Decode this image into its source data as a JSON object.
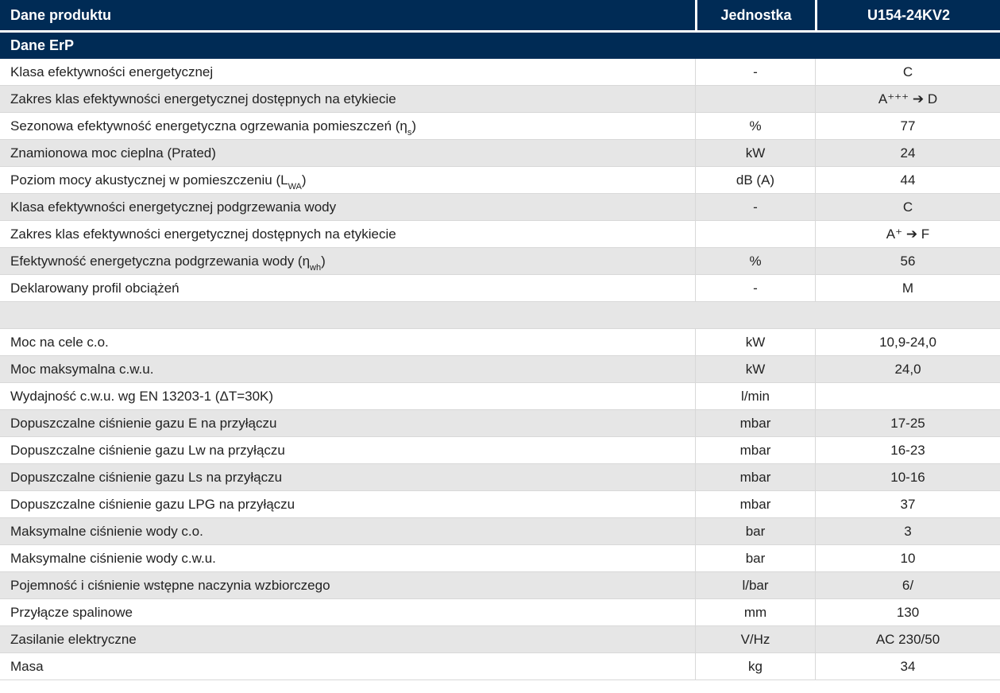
{
  "table": {
    "header": {
      "product_label": "Dane produktu",
      "unit_label": "Jednostka",
      "model_label": "U154-24KV2"
    },
    "section": {
      "erp_label": "Dane ErP"
    },
    "colors": {
      "header_bg": "#002b55",
      "header_text": "#ffffff",
      "row_alt_bg": "#e6e6e6",
      "row_bg": "#ffffff",
      "separator": "#d8d8d8",
      "text": "#222222"
    },
    "rows": [
      {
        "label": "Klasa efektywności energetycznej",
        "sub": "",
        "end": "",
        "unit": "-",
        "value": "C"
      },
      {
        "label": "Zakres klas efektywności energetycznej dostępnych na etykiecie",
        "sub": "",
        "end": "",
        "unit": "",
        "value": "A⁺⁺⁺ ➔ D"
      },
      {
        "label": "Sezonowa efektywność energetyczna ogrzewania pomieszczeń (η",
        "sub": "s",
        "end": ")",
        "unit": "%",
        "value": "77"
      },
      {
        "label": "Znamionowa moc cieplna (Prated)",
        "sub": "",
        "end": "",
        "unit": "kW",
        "value": "24"
      },
      {
        "label": "Poziom mocy akustycznej w pomieszczeniu (L",
        "sub": "WA",
        "end": ")",
        "unit": "dB (A)",
        "value": "44"
      },
      {
        "label": "Klasa efektywności energetycznej podgrzewania wody",
        "sub": "",
        "end": "",
        "unit": "-",
        "value": "C"
      },
      {
        "label": "Zakres klas efektywności energetycznej dostępnych na etykiecie",
        "sub": "",
        "end": "",
        "unit": "",
        "value": "A⁺ ➔ F"
      },
      {
        "label": "Efektywność energetyczna podgrzewania wody (η",
        "sub": "wh",
        "end": ")",
        "unit": "%",
        "value": "56"
      },
      {
        "label": "Deklarowany profil obciążeń",
        "sub": "",
        "end": "",
        "unit": "-",
        "value": "M"
      },
      {
        "type": "spacer"
      },
      {
        "label": "Moc na cele c.o.",
        "sub": "",
        "end": "",
        "unit": "kW",
        "value": "10,9-24,0"
      },
      {
        "label": "Moc maksymalna c.w.u.",
        "sub": "",
        "end": "",
        "unit": "kW",
        "value": "24,0"
      },
      {
        "label": "Wydajność c.w.u. wg EN 13203-1 (ΔT=30K)",
        "sub": "",
        "end": "",
        "unit": "l/min",
        "value": ""
      },
      {
        "label": "Dopuszczalne ciśnienie gazu E na przyłączu",
        "sub": "",
        "end": "",
        "unit": "mbar",
        "value": "17-25"
      },
      {
        "label": "Dopuszczalne ciśnienie gazu Lw na przyłączu",
        "sub": "",
        "end": "",
        "unit": "mbar",
        "value": "16-23"
      },
      {
        "label": "Dopuszczalne ciśnienie gazu Ls na przyłączu",
        "sub": "",
        "end": "",
        "unit": "mbar",
        "value": "10-16"
      },
      {
        "label": "Dopuszczalne ciśnienie gazu LPG na przyłączu",
        "sub": "",
        "end": "",
        "unit": "mbar",
        "value": "37"
      },
      {
        "label": "Maksymalne ciśnienie wody c.o.",
        "sub": "",
        "end": "",
        "unit": "bar",
        "value": "3"
      },
      {
        "label": "Maksymalne ciśnienie wody c.w.u.",
        "sub": "",
        "end": "",
        "unit": "bar",
        "value": "10"
      },
      {
        "label": "Pojemność i ciśnienie wstępne naczynia wzbiorczego",
        "sub": "",
        "end": "",
        "unit": "l/bar",
        "value": "6/"
      },
      {
        "label": "Przyłącze spalinowe",
        "sub": "",
        "end": "",
        "unit": "mm",
        "value": "130"
      },
      {
        "label": "Zasilanie elektryczne",
        "sub": "",
        "end": "",
        "unit": "V/Hz",
        "value": "AC 230/50"
      },
      {
        "label": "Masa",
        "sub": "",
        "end": "",
        "unit": "kg",
        "value": "34"
      }
    ]
  }
}
